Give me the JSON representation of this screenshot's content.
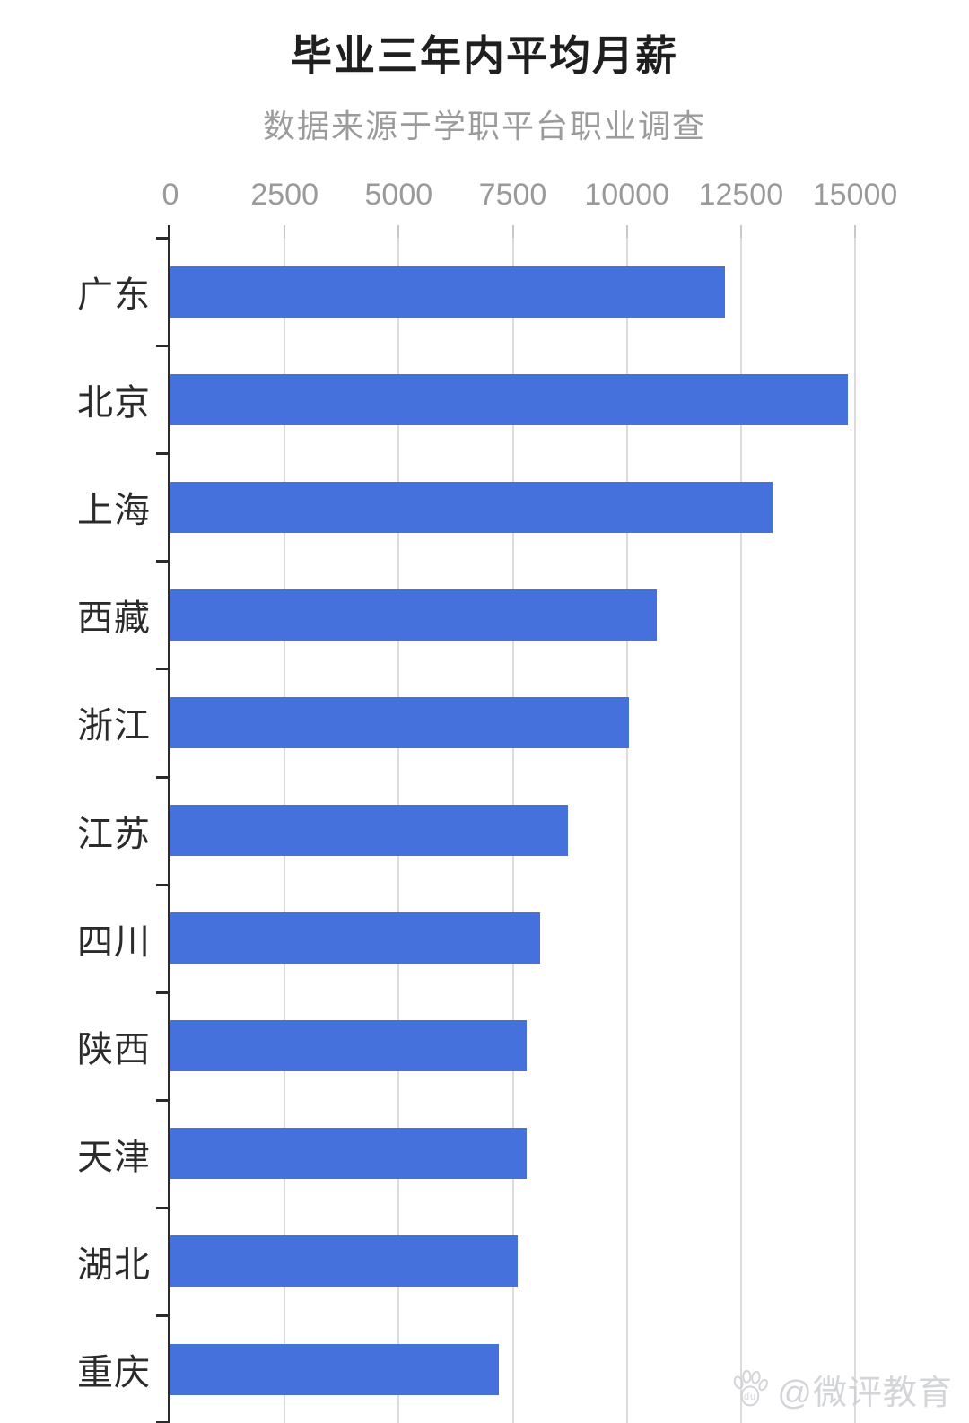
{
  "page": {
    "title": "毕业三年内平均月薪",
    "subtitle": "数据来源于学职平台职业调查",
    "watermark": "@微评教育",
    "watermark_icon": "baidu-paw-icon"
  },
  "chart_data": {
    "type": "bar",
    "orientation": "horizontal",
    "title": "毕业三年内平均月薪",
    "subtitle": "数据来源于学职平台职业调查",
    "categories": [
      "广东",
      "北京",
      "上海",
      "西藏",
      "浙江",
      "江苏",
      "四川",
      "陕西",
      "天津",
      "湖北",
      "重庆"
    ],
    "values": [
      12150,
      14850,
      13200,
      10650,
      10050,
      8700,
      8100,
      7800,
      7800,
      7600,
      7200
    ],
    "x_ticks": [
      0,
      2500,
      5000,
      7500,
      10000,
      12500,
      15000
    ],
    "xlim": [
      0,
      16600
    ],
    "xlabel": "",
    "ylabel": "",
    "grid": true,
    "legend": "none",
    "bar_color": "#4571DC",
    "gridline_color": "#dcdcdc",
    "axis_color": "#2b2b2b",
    "tick_label_color": "#9a9a9a",
    "category_label_color": "#2b2b2b"
  }
}
